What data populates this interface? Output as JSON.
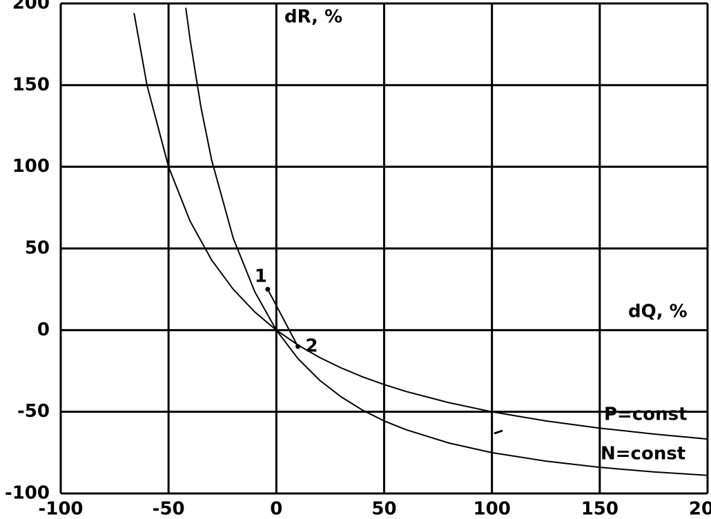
{
  "chart_data": {
    "type": "line",
    "xlabel": "dQ, %",
    "ylabel": "dR, %",
    "xlim": [
      -100,
      200
    ],
    "ylim": [
      -100,
      200
    ],
    "xticks": [
      -100,
      -50,
      0,
      50,
      100,
      150,
      200
    ],
    "yticks": [
      -100,
      -50,
      0,
      50,
      100,
      150,
      200
    ],
    "grid": true,
    "series": [
      {
        "name": "P=const",
        "color": "#000000",
        "x": [
          -66,
          -60,
          -50,
          -40,
          -30,
          -20,
          -10,
          0,
          10,
          20,
          30,
          40,
          50,
          60,
          80,
          100,
          125,
          150,
          175,
          200
        ],
        "values": [
          194.1,
          150,
          100,
          66.7,
          42.9,
          25,
          11.1,
          0,
          -9.1,
          -16.7,
          -23.1,
          -28.6,
          -33.3,
          -37.5,
          -44.4,
          -50,
          -55.6,
          -60,
          -63.6,
          -66.7
        ]
      },
      {
        "name": "N=const",
        "color": "#000000",
        "x": [
          -42,
          -40,
          -35,
          -30,
          -20,
          -10,
          0,
          10,
          20,
          30,
          40,
          50,
          60,
          80,
          100,
          125,
          150,
          175,
          200
        ],
        "values": [
          197.3,
          177.8,
          136.7,
          104.1,
          56.3,
          23.5,
          0,
          -17.4,
          -30.6,
          -40.8,
          -49.0,
          -55.6,
          -60.9,
          -69.1,
          -75,
          -80.2,
          -84,
          -86.8,
          -88.9
        ]
      }
    ],
    "annotations": [
      {
        "text": "1",
        "x": -4,
        "y": 25
      },
      {
        "text": "2",
        "x": 10,
        "y": -10
      }
    ]
  }
}
